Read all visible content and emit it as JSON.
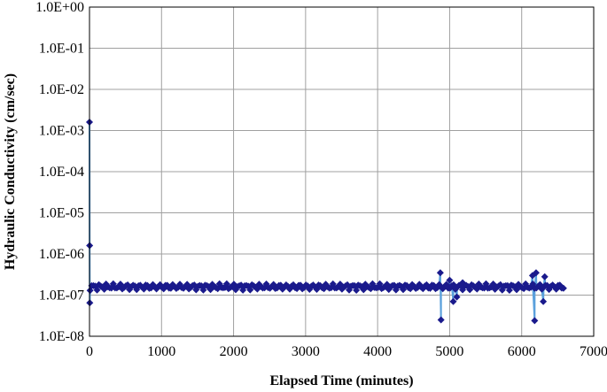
{
  "chart_data": {
    "type": "scatter",
    "title": "",
    "xlabel": "Elapsed Time (minutes)",
    "ylabel": "Hydraulic Conductivity (cm/sec)",
    "xlim": [
      0,
      7000
    ],
    "ylim": [
      1e-08,
      1
    ],
    "y_scale": "log",
    "grid": true,
    "legend": "none",
    "x_ticks": [
      "0",
      "1000",
      "2000",
      "3000",
      "4000",
      "5000",
      "6000",
      "7000"
    ],
    "y_ticks": [
      "1.0E-08",
      "1.0E-07",
      "1.0E-06",
      "1.0E-05",
      "1.0E-04",
      "1.0E-03",
      "1.0E-02",
      "1.0E-01",
      "1.0E+00"
    ],
    "colors": {
      "marker": "#1a1a8c",
      "line": "#5aa0dc",
      "grid": "#a0a0a0"
    },
    "series": [
      {
        "marker": "diamond",
        "baseline": {
          "x_start": 30,
          "x_end": 6600,
          "step": 25,
          "y": 1.6e-07
        },
        "points": [
          {
            "x": 0,
            "y": 0.0016
          },
          {
            "x": 2,
            "y": 1.6e-06
          },
          {
            "x": 4,
            "y": 6.5e-08
          },
          {
            "x": 8,
            "y": 1.3e-07
          },
          {
            "x": 4870,
            "y": 3.5e-07
          },
          {
            "x": 4880,
            "y": 2.5e-08
          },
          {
            "x": 5000,
            "y": 2.3e-07
          },
          {
            "x": 5050,
            "y": 7e-08
          },
          {
            "x": 5100,
            "y": 9e-08
          },
          {
            "x": 5180,
            "y": 2e-07
          },
          {
            "x": 6150,
            "y": 3e-07
          },
          {
            "x": 6180,
            "y": 2.4e-08
          },
          {
            "x": 6200,
            "y": 3.5e-07
          },
          {
            "x": 6300,
            "y": 7e-08
          },
          {
            "x": 6320,
            "y": 2.8e-07
          }
        ]
      }
    ]
  }
}
